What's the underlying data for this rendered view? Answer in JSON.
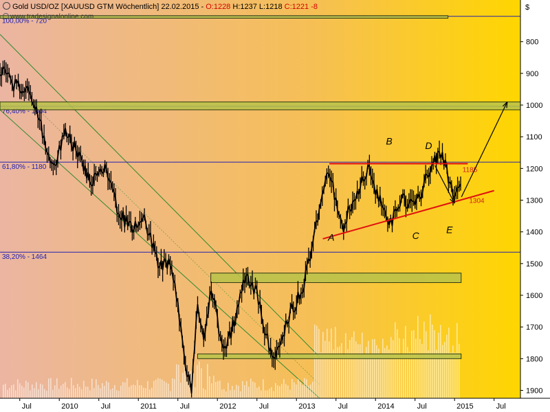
{
  "header": {
    "instrument": "Gold USD/OZ [XAUUSD GTM  Wöchentlich] 22.02.2015",
    "open": "O:1228",
    "high": "H:1237",
    "low": "L:1218",
    "close": "C:1221",
    "change": "-8"
  },
  "watermark": "www.tradesignalonline.com",
  "chart_data": {
    "type": "line",
    "title": "",
    "y_unit": "$",
    "y_axis_inverted": true,
    "ylim": [
      700,
      1925
    ],
    "yticks": [
      800,
      900,
      1000,
      1100,
      1200,
      1300,
      1400,
      1500,
      1600,
      1700,
      1800,
      1900
    ],
    "xlim": [
      "2009-04",
      "2015-11"
    ],
    "x_ticks": [
      {
        "label": "Jul",
        "date": "2009-07"
      },
      {
        "label": "2010",
        "date": "2010-01"
      },
      {
        "label": "Jul",
        "date": "2010-07"
      },
      {
        "label": "2011",
        "date": "2011-01"
      },
      {
        "label": "Jul",
        "date": "2011-07"
      },
      {
        "label": "2012",
        "date": "2012-01"
      },
      {
        "label": "Jul",
        "date": "2012-07"
      },
      {
        "label": "2013",
        "date": "2013-01"
      },
      {
        "label": "Jul",
        "date": "2013-07"
      },
      {
        "label": "2014",
        "date": "2014-01"
      },
      {
        "label": "Jul",
        "date": "2014-07"
      },
      {
        "label": "2015",
        "date": "2015-01"
      },
      {
        "label": "Jul",
        "date": "2015-07"
      }
    ],
    "series": [
      {
        "name": "",
        "points": [
          [
            "2009-04",
            890
          ],
          [
            "2009-06",
            935
          ],
          [
            "2009-08",
            950
          ],
          [
            "2009-10",
            1050
          ],
          [
            "2009-12",
            1200
          ],
          [
            "2010-02",
            1090
          ],
          [
            "2010-04",
            1160
          ],
          [
            "2010-06",
            1245
          ],
          [
            "2010-08",
            1200
          ],
          [
            "2010-10",
            1340
          ],
          [
            "2010-12",
            1390
          ],
          [
            "2011-02",
            1360
          ],
          [
            "2011-04",
            1500
          ],
          [
            "2011-06",
            1500
          ],
          [
            "2011-07",
            1620
          ],
          [
            "2011-08",
            1800
          ],
          [
            "2011-09",
            1910
          ],
          [
            "2011-10",
            1640
          ],
          [
            "2011-11",
            1760
          ],
          [
            "2011-12",
            1560
          ],
          [
            "2012-02",
            1790
          ],
          [
            "2012-04",
            1650
          ],
          [
            "2012-05",
            1540
          ],
          [
            "2012-07",
            1590
          ],
          [
            "2012-09",
            1780
          ],
          [
            "2012-10",
            1790
          ],
          [
            "2012-12",
            1660
          ],
          [
            "2013-02",
            1580
          ],
          [
            "2013-04",
            1380
          ],
          [
            "2013-06",
            1200
          ],
          [
            "2013-08",
            1400
          ],
          [
            "2013-09",
            1330
          ],
          [
            "2013-11",
            1240
          ],
          [
            "2013-12",
            1200
          ],
          [
            "2014-03",
            1385
          ],
          [
            "2014-05",
            1290
          ],
          [
            "2014-07",
            1330
          ],
          [
            "2014-09",
            1215
          ],
          [
            "2014-11",
            1145
          ],
          [
            "2015-01",
            1300
          ],
          [
            "2015-02",
            1221
          ]
        ]
      }
    ],
    "fib_levels": [
      {
        "label": "100,00% - 720",
        "value": 720
      },
      {
        "label": "76,40% - 1004",
        "value": 1004
      },
      {
        "label": "61,80% - 1180",
        "value": 1180
      },
      {
        "label": "38,20% - 1464",
        "value": 1464
      }
    ],
    "zones": [
      {
        "from": "2011-12",
        "to": "2015-02",
        "low": 1530,
        "high": 1560,
        "y": 1545
      },
      {
        "from": "2009-04",
        "to": "2015-11",
        "low": 990,
        "high": 1015,
        "y": 1003
      },
      {
        "from": "2011-10",
        "to": "2015-02",
        "low": 1785,
        "high": 1800,
        "y": 1792
      },
      {
        "from": "2009-04",
        "to": "2014-12",
        "low": 718,
        "high": 726,
        "y": 722
      }
    ],
    "resistance_label": "1185",
    "support_label": "1304",
    "points": [
      {
        "label": "A",
        "date": "2013-06",
        "value": 1380
      },
      {
        "label": "B",
        "date": "2014-03",
        "value": 1150
      },
      {
        "label": "C",
        "date": "2014-07",
        "value": 1370
      },
      {
        "label": "D",
        "date": "2014-10",
        "value": 1160
      },
      {
        "label": "E",
        "date": "2015-01",
        "value": 1330
      }
    ]
  }
}
